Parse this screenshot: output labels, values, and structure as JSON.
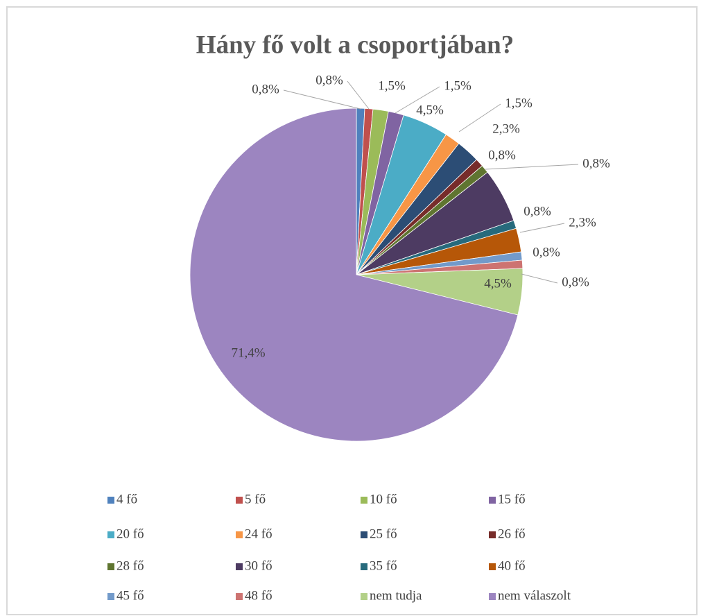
{
  "chart_data": {
    "type": "pie",
    "title": "Hány fő volt a csoportjában?",
    "categories": [
      "4 fő",
      "5 fő",
      "10 fő",
      "15 fő",
      "20 fő",
      "24 fő",
      "25 fő",
      "26 fő",
      "28 fő",
      "30 fő",
      "35 fő",
      "40 fő",
      "45 fő",
      "48 fő",
      "nem tudja",
      "nem válaszolt"
    ],
    "values": [
      0.8,
      0.8,
      1.5,
      1.5,
      4.5,
      1.5,
      2.3,
      0.8,
      0.8,
      5.3,
      0.8,
      2.3,
      0.8,
      0.8,
      4.5,
      71.4
    ],
    "value_labels": [
      "0,8%",
      "0,8%",
      "1,5%",
      "1,5%",
      "4,5%",
      "1,5%",
      "2,3%",
      "0,8%",
      "0,8%",
      null,
      "0,8%",
      "2,3%",
      "0,8%",
      "0,8%",
      "4,5%",
      "71,4%"
    ],
    "colors": [
      "#4f81bd",
      "#c0504d",
      "#9bbb59",
      "#8064a2",
      "#4bacc6",
      "#f79646",
      "#2c4d75",
      "#772c2a",
      "#5f7530",
      "#4d3b62",
      "#276a7c",
      "#b65708",
      "#729aca",
      "#cd7371",
      "#b3d088",
      "#9c85c0"
    ],
    "legend": "bottom"
  }
}
